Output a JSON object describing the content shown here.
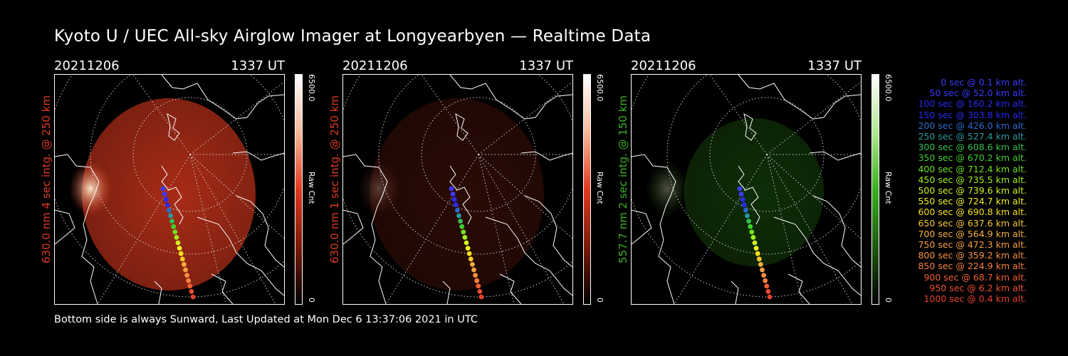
{
  "title": "Kyoto U / UEC All-sky Airglow Imager at Longyearbyen — Realtime Data",
  "footer": "Bottom side is always Sunward, Last Updated at Mon Dec  6 13:37:06 2021 in UTC",
  "panels": [
    {
      "date": "20211206",
      "time": "1337 UT",
      "ylabel": "630.0 nm 4 sec intg. @ 250 km",
      "cbar_max": "6500.0",
      "cbar_min": "0",
      "cbar_label": "Raw Cnt",
      "color": "#e03a1e",
      "brightness": 1.0
    },
    {
      "date": "20211206",
      "time": "1337 UT",
      "ylabel": "630.0 nm 1 sec intg. @ 250 km",
      "cbar_max": "6500.0",
      "cbar_min": "0",
      "cbar_label": "Raw Cnt",
      "color": "#e03a1e",
      "brightness": 0.25
    },
    {
      "date": "20211206",
      "time": "1337 UT",
      "ylabel": "557.7 nm 2 sec intg. @ 150 km",
      "cbar_max": "6500.0",
      "cbar_min": "0",
      "cbar_label": "Raw Cnt",
      "color": "#3ab020",
      "brightness": 0.35
    }
  ],
  "legend": [
    {
      "text": "0 sec @    0.1 km alt.",
      "color": "#3b3bff"
    },
    {
      "text": "50 sec @   52.0 km alt.",
      "color": "#3b3bff"
    },
    {
      "text": "100 sec @  160.2 km alt.",
      "color": "#2a2af0"
    },
    {
      "text": "150 sec @  303.8 km alt.",
      "color": "#2a2af0"
    },
    {
      "text": "200 sec @  426.0 km alt.",
      "color": "#2b6ad0"
    },
    {
      "text": "250 sec @  527.4 km alt.",
      "color": "#2a9aa0"
    },
    {
      "text": "300 sec @  608.6 km alt.",
      "color": "#30c050"
    },
    {
      "text": "350 sec @  670.2 km alt.",
      "color": "#40d030"
    },
    {
      "text": "400 sec @  712.4 km alt.",
      "color": "#70e020"
    },
    {
      "text": "450 sec @  735.5 km alt.",
      "color": "#a0f020"
    },
    {
      "text": "500 sec @  739.6 km alt.",
      "color": "#d0f020"
    },
    {
      "text": "550 sec @  724.7 km alt.",
      "color": "#f0f020"
    },
    {
      "text": "600 sec @  690.8 km alt.",
      "color": "#f8e020"
    },
    {
      "text": "650 sec @  637.6 km alt.",
      "color": "#f8c830"
    },
    {
      "text": "700 sec @  564.9 km alt.",
      "color": "#f8b040"
    },
    {
      "text": "750 sec @  472.3 km alt.",
      "color": "#f8a040"
    },
    {
      "text": "800 sec @  359.2 km alt.",
      "color": "#f89040"
    },
    {
      "text": "850 sec @  224.9 km alt.",
      "color": "#f88040"
    },
    {
      "text": "900 sec @   68.7 km alt.",
      "color": "#f06030"
    },
    {
      "text": "950 sec @    6.2 km alt.",
      "color": "#f05030"
    },
    {
      "text": "1000 sec @    0.4 km alt.",
      "color": "#e84030"
    }
  ]
}
